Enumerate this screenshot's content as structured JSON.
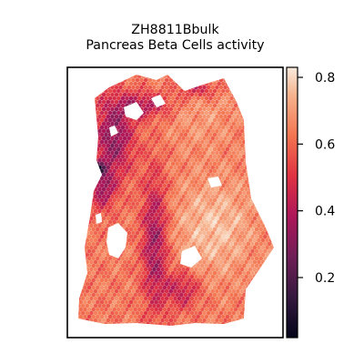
{
  "chart_data": {
    "type": "heatmap",
    "title": "ZH8811Bbulk",
    "subtitle": "Pancreas Beta Cells activity",
    "xlabel": "",
    "ylabel": "",
    "colorbar": {
      "colormap": "rocket",
      "range": [
        0.02,
        0.83
      ],
      "ticks": [
        0.2,
        0.4,
        0.6,
        0.8
      ],
      "tick_labels": [
        "0.2",
        "0.4",
        "0.6",
        "0.8"
      ]
    },
    "grid": false,
    "spot_shape": "hexagon",
    "axes_ticks_visible": false,
    "regions": [
      {
        "name": "bottom-right bulk",
        "approx_value": 0.72
      },
      {
        "name": "upper-left rim",
        "approx_value": 0.3
      },
      {
        "name": "central vertical band",
        "approx_value": 0.35
      },
      {
        "name": "bottom-left border",
        "approx_value": 0.55
      }
    ]
  }
}
